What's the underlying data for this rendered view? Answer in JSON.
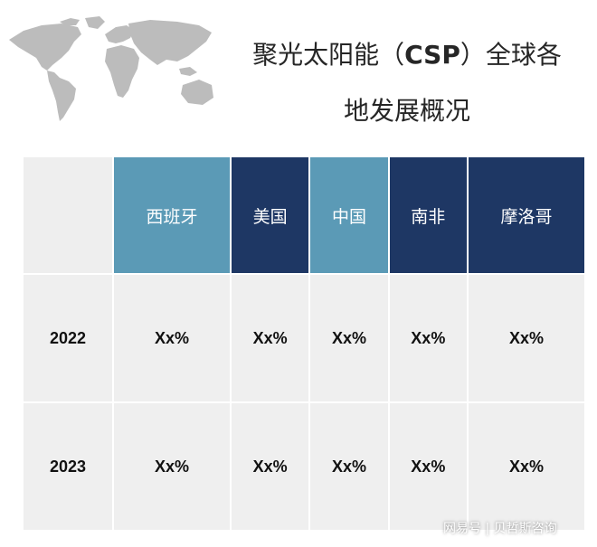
{
  "title": {
    "part1": "聚光太阳能（",
    "part2": "CSP",
    "part3": "）全球各",
    "line2": "地发展概况"
  },
  "icons": {
    "map": "world-map-icon"
  },
  "table": {
    "columns": [
      "西班牙",
      "美国",
      "中国",
      "南非",
      "摩洛哥"
    ],
    "column_colors": [
      "#5b9ab6",
      "#1e3764",
      "#5b9ab6",
      "#1e3764",
      "#1e3764"
    ],
    "rows": [
      {
        "year": "2022",
        "values": [
          "Xx%",
          "Xx%",
          "Xx%",
          "Xx%",
          "Xx%"
        ]
      },
      {
        "year": "2023",
        "values": [
          "Xx%",
          "Xx%",
          "Xx%",
          "Xx%",
          "Xx%"
        ]
      }
    ]
  },
  "watermark": "网易号 | 贝哲斯咨询"
}
